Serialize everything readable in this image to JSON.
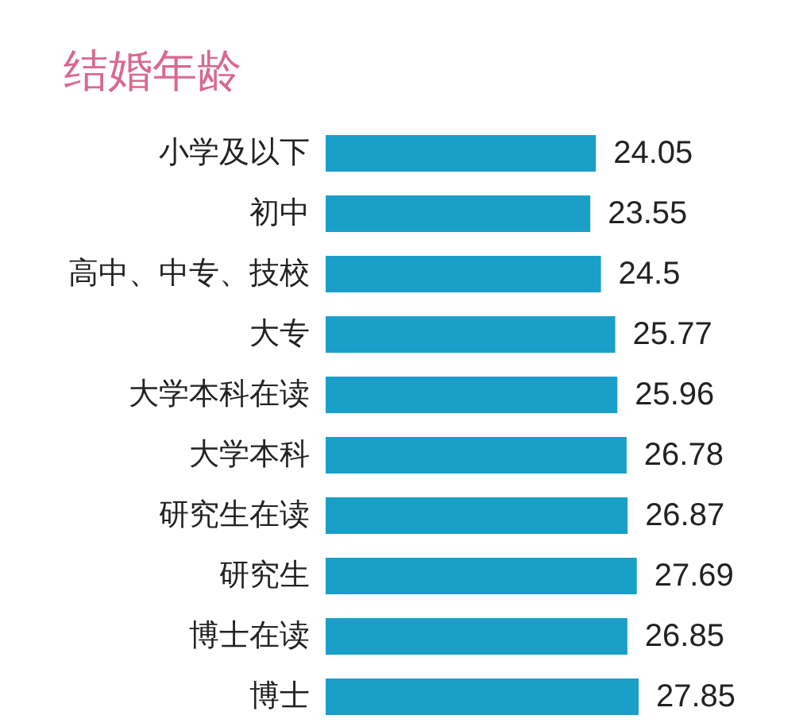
{
  "chart_data": {
    "type": "bar",
    "orientation": "horizontal",
    "title": "结婚年龄",
    "categories": [
      "小学及以下",
      "初中",
      "高中、中专、技校",
      "大专",
      "大学本科在读",
      "大学本科",
      "研究生在读",
      "研究生",
      "博士在读",
      "博士"
    ],
    "values": [
      24.05,
      23.55,
      24.5,
      25.77,
      25.96,
      26.78,
      26.87,
      27.69,
      26.85,
      27.85
    ],
    "color": "#1a9fc9",
    "data_labels": true,
    "tick_labels": "y"
  }
}
